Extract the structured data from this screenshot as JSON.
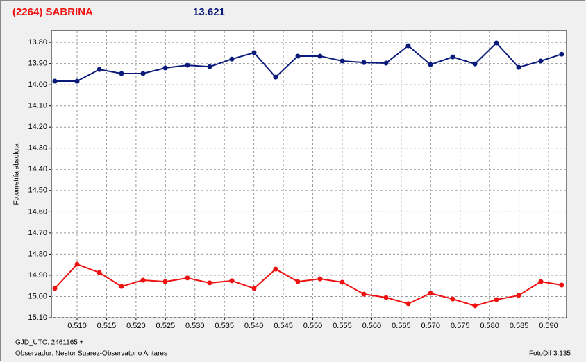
{
  "chart_data": {
    "type": "line",
    "title": "(2264) SABRINA",
    "subtitle": "13.621",
    "y_label": "Fotometría absoluta",
    "x_label": "GJD_UTC: 2461165 +",
    "observer": "Observador: Nestor Suarez-Observatorio Antares",
    "software": "FotoDif 3.135",
    "x": [
      0.50623,
      0.51,
      0.51377,
      0.51754,
      0.52119,
      0.52496,
      0.52873,
      0.5325,
      0.53627,
      0.54004,
      0.54369,
      0.54746,
      0.55123,
      0.555,
      0.55866,
      0.56243,
      0.5662,
      0.56997,
      0.57374,
      0.57751,
      0.58116,
      0.58493,
      0.5887,
      0.59223
    ],
    "series": [
      {
        "color": "#0a1a7a",
        "values": [
          13.983,
          13.983,
          13.928,
          13.947,
          13.947,
          13.921,
          13.908,
          13.915,
          13.879,
          13.849,
          13.964,
          13.865,
          13.865,
          13.888,
          13.895,
          13.898,
          13.816,
          13.905,
          13.869,
          13.902,
          13.803,
          13.918,
          13.888,
          13.856
        ]
      },
      {
        "color": "#ee1111",
        "values": [
          14.962,
          14.848,
          14.887,
          14.953,
          14.923,
          14.93,
          14.913,
          14.936,
          14.926,
          14.962,
          14.871,
          14.93,
          14.917,
          14.933,
          14.989,
          15.005,
          15.034,
          14.985,
          15.012,
          15.044,
          15.015,
          14.995,
          14.93,
          14.946
        ]
      }
    ],
    "xlim": [
      0.50564,
      0.59306
    ],
    "ylim": [
      15.1,
      13.744
    ],
    "y_inverted": true,
    "grid": true,
    "xticks": [
      {
        "value": 0.51,
        "label": "0.510"
      },
      {
        "value": 0.515,
        "label": "0.515"
      },
      {
        "value": 0.52,
        "label": "0.520"
      },
      {
        "value": 0.525,
        "label": "0.525"
      },
      {
        "value": 0.53,
        "label": "0.530"
      },
      {
        "value": 0.535,
        "label": "0.535"
      },
      {
        "value": 0.54,
        "label": "0.540"
      },
      {
        "value": 0.545,
        "label": "0.545"
      },
      {
        "value": 0.55,
        "label": "0.550"
      },
      {
        "value": 0.555,
        "label": "0.555"
      },
      {
        "value": 0.56,
        "label": "0.560"
      },
      {
        "value": 0.565,
        "label": "0.565"
      },
      {
        "value": 0.57,
        "label": "0.570"
      },
      {
        "value": 0.575,
        "label": "0.575"
      },
      {
        "value": 0.58,
        "label": "0.580"
      },
      {
        "value": 0.585,
        "label": "0.585"
      },
      {
        "value": 0.59,
        "label": "0.590"
      }
    ],
    "yticks": [
      {
        "value": 13.8,
        "label": "13.80"
      },
      {
        "value": 13.9,
        "label": "13.90"
      },
      {
        "value": 14.0,
        "label": "14.00"
      },
      {
        "value": 14.1,
        "label": "14.10"
      },
      {
        "value": 14.2,
        "label": "14.20"
      },
      {
        "value": 14.3,
        "label": "14.30"
      },
      {
        "value": 14.4,
        "label": "14.40"
      },
      {
        "value": 14.5,
        "label": "14.50"
      },
      {
        "value": 14.6,
        "label": "14.60"
      },
      {
        "value": 14.7,
        "label": "14.70"
      },
      {
        "value": 14.8,
        "label": "14.80"
      },
      {
        "value": 14.9,
        "label": "14.90"
      },
      {
        "value": 15.0,
        "label": "15.00"
      },
      {
        "value": 15.1,
        "label": "15.10"
      }
    ]
  }
}
